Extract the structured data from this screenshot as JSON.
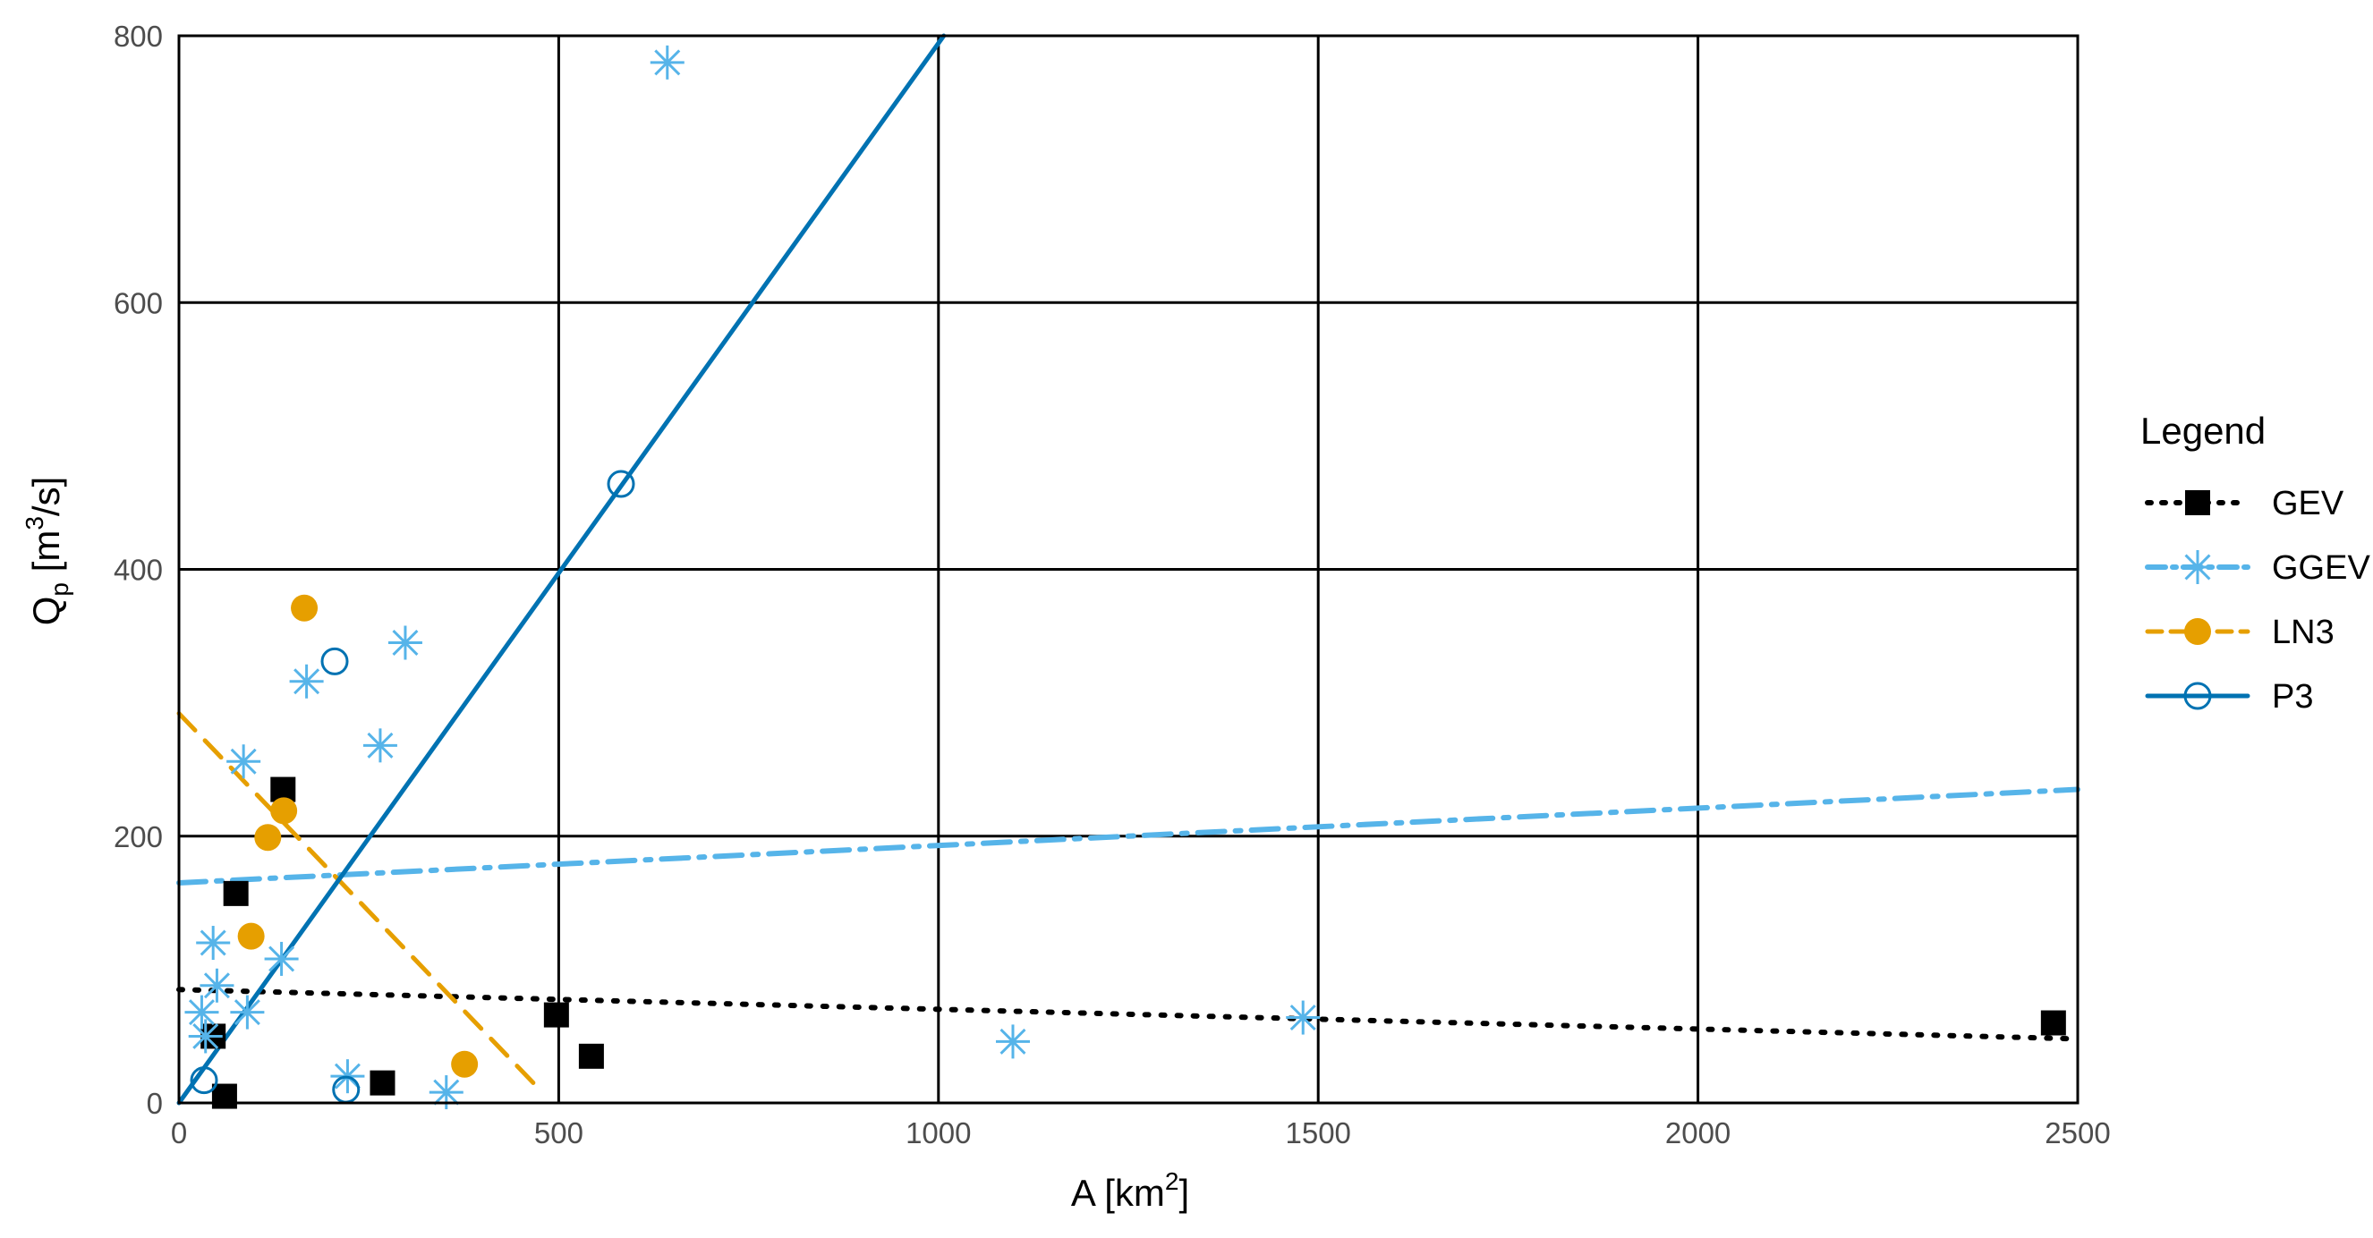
{
  "chart_data": {
    "type": "scatter",
    "xlabel": {
      "base": "A [km",
      "sup": "2",
      "end": "]"
    },
    "ylabel": {
      "base": "Q",
      "sub": "p",
      "mid": " [m",
      "sup": "3",
      "end": "/s]"
    },
    "xlim": [
      0,
      2500
    ],
    "ylim": [
      0,
      800
    ],
    "xticks": [
      0,
      500,
      1000,
      1500,
      2000,
      2500
    ],
    "yticks": [
      0,
      200,
      400,
      600,
      800
    ],
    "grid": true,
    "legend": {
      "title": "Legend",
      "placement": "right"
    },
    "series": [
      {
        "name": "GEV",
        "color": "#000000",
        "marker": "filled-square",
        "line_style": "dotted",
        "points": [
          [
            45,
            50
          ],
          [
            60,
            5
          ],
          [
            75,
            157
          ],
          [
            137,
            235
          ],
          [
            268,
            15
          ],
          [
            497,
            66
          ],
          [
            543,
            35
          ],
          [
            2468,
            60
          ]
        ],
        "fit_line": [
          [
            0,
            85
          ],
          [
            2500,
            48
          ]
        ]
      },
      {
        "name": "GGEV",
        "color": "#56b4e9",
        "marker": "asterisk",
        "line_style": "dashdot",
        "points": [
          [
            30,
            68
          ],
          [
            35,
            50
          ],
          [
            45,
            120
          ],
          [
            50,
            88
          ],
          [
            85,
            256
          ],
          [
            90,
            68
          ],
          [
            135,
            108
          ],
          [
            168,
            316
          ],
          [
            222,
            20
          ],
          [
            265,
            268
          ],
          [
            298,
            345
          ],
          [
            352,
            8
          ],
          [
            643,
            780
          ],
          [
            1098,
            46
          ],
          [
            1480,
            64
          ]
        ],
        "fit_line": [
          [
            0,
            165
          ],
          [
            2500,
            235
          ]
        ]
      },
      {
        "name": "LN3",
        "color": "#e69f00",
        "marker": "filled-circle",
        "line_style": "dashed",
        "points": [
          [
            95,
            125
          ],
          [
            117,
            199
          ],
          [
            138,
            219
          ],
          [
            165,
            371
          ],
          [
            376,
            29
          ]
        ],
        "fit_line": [
          [
            0,
            292
          ],
          [
            475,
            10
          ]
        ]
      },
      {
        "name": "P3",
        "color": "#0072b2",
        "marker": "open-circle",
        "line_style": "solid",
        "points": [
          [
            33,
            17
          ],
          [
            205,
            331
          ],
          [
            220,
            10
          ],
          [
            582,
            464
          ]
        ],
        "fit_line": [
          [
            0,
            0
          ],
          [
            1007,
            800
          ]
        ]
      }
    ]
  }
}
